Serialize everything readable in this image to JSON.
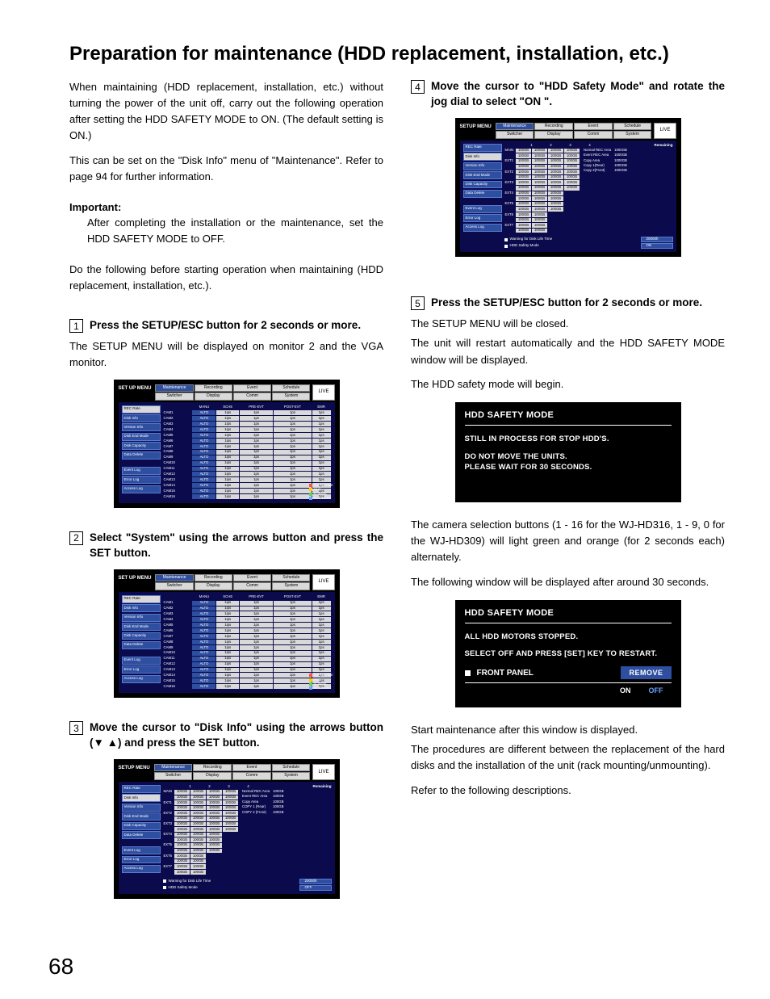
{
  "pageNumber": "68",
  "title": "Preparation for maintenance (HDD replacement, installation, etc.)",
  "intro": {
    "p1": "When maintaining (HDD replacement, installation, etc.) without turning the power of the unit off, carry out the following operation after setting the HDD SAFETY MODE to ON. (The default setting is ON.)",
    "p2": "This can be set on the \"Disk Info\" menu of \"Maintenance\". Refer to page 94 for further information.",
    "importantHead": "Important:",
    "importantBody": "After completing the installation or the maintenance, set the HDD SAFETY MODE to OFF.",
    "p3": "Do the following before starting operation when maintaining (HDD replacement, installation, etc.)."
  },
  "steps": {
    "s1": {
      "num": "1",
      "title": "Press the SETUP/ESC button for 2 seconds or more.",
      "body": "The SETUP MENU will be displayed on monitor 2 and the VGA monitor."
    },
    "s2": {
      "num": "2",
      "title": "Select \"System\" using the arrows button and press the SET button."
    },
    "s3": {
      "num": "3",
      "title": "Move the cursor to \"Disk Info\" using the arrows button (▼ ▲) and press the SET button."
    },
    "s4": {
      "num": "4",
      "title": "Move the cursor to \"HDD Safety Mode\" and rotate the jog dial to select \"ON \"."
    },
    "s5": {
      "num": "5",
      "title": "Press the SETUP/ESC button for 2 seconds or more.",
      "body1": "The SETUP MENU will be closed.",
      "body2": "The unit will restart automatically and the HDD SAFETY MODE window will be displayed.",
      "body3": "The HDD safety mode will begin."
    }
  },
  "menu": {
    "setupLabel": "SET UP MENU",
    "setupLabelAlt": "SETUP MENU",
    "live": "LIVE",
    "tabsTop": [
      "Maintenance",
      "Recording",
      "Event",
      "Schedule"
    ],
    "tabsBot": [
      "Switcher",
      "Display",
      "Comm",
      "System"
    ],
    "side": [
      "REC Rate",
      "Disk Info",
      "Version Info",
      "Disk End Mode",
      "Disk Capacity",
      "Data Delete"
    ],
    "sideBottom": [
      "Event Log",
      "Error Log",
      "Access Log"
    ],
    "tableHead": [
      "",
      "MANU",
      "SCHE",
      "PRE-EVT",
      "POST-EVT",
      "EMR"
    ],
    "tableRowVals": [
      "ALTO",
      "1ips",
      "1ps",
      "1ps",
      "1ps"
    ],
    "camCount": 16,
    "legend": [
      "SUPER FINE",
      "FINE",
      "NORMAL",
      "EXTENDED"
    ],
    "legendColors": [
      "#ff4d4d",
      "#ffcc00",
      "#66cc66",
      "#66aaff"
    ],
    "diskHeadNums": [
      "1",
      "2",
      "3",
      "4"
    ],
    "diskHeadRemain": "Remaining",
    "diskRows": [
      "MAIN",
      "",
      "EXT1",
      "",
      "EXT2",
      "",
      "EXT3",
      "",
      "EXT4",
      "",
      "EXT5",
      "",
      "EXT6",
      "",
      "EXT7",
      ""
    ],
    "diskVal": "100GB",
    "remain": [
      {
        "l": "Normal REC Area",
        "v": "100GB"
      },
      {
        "l": "Event REC Area",
        "v": "100GB"
      },
      {
        "l": "Copy Area",
        "v": "100GB"
      },
      {
        "l": "COPY 1 (Rear)",
        "v": "100GB"
      },
      {
        "l": "COPY 2 (Front)",
        "v": "100GB"
      }
    ],
    "remainAlt": [
      {
        "l": "Normal REC Area",
        "v": "1000GB"
      },
      {
        "l": "Event REC Area",
        "v": "1000GB"
      },
      {
        "l": "Copy Area",
        "v": "1000GB"
      },
      {
        "l": "Copy 1(Rear)",
        "v": "1000GB"
      },
      {
        "l": "Copy 2(Front)",
        "v": "1000GB"
      }
    ],
    "footWarn": "Warning for Disk Life Time",
    "footWarnVal": "20000h",
    "footSafety": "HDD Safety Mode",
    "footSafetyValOff": "OFF",
    "footSafetyValOn": "ON"
  },
  "hdd1": {
    "title": "HDD SAFETY MODE",
    "l1": "STILL IN PROCESS FOR STOP HDD'S.",
    "l2": "DO NOT MOVE THE UNITS.",
    "l3": "PLEASE WAIT FOR 30 SECONDS."
  },
  "mid": {
    "p1": "The camera selection buttons (1 - 16 for the WJ-HD316, 1 - 9, 0 for the WJ-HD309) will light green and orange (for 2 seconds each) alternately.",
    "p2": "The following window will be displayed after around 30 seconds."
  },
  "hdd2": {
    "title": "HDD SAFETY MODE",
    "l1": "ALL HDD MOTORS STOPPED.",
    "l2": "SELECT OFF AND PRESS [SET] KEY TO RESTART.",
    "front": "FRONT PANEL",
    "remove": "REMOVE",
    "on": "ON",
    "off": "OFF"
  },
  "outro": {
    "p1": "Start maintenance after this window is displayed.",
    "p2": "The procedures are different between the replacement of the hard disks and the installation of the unit (rack mounting/unmounting).",
    "p3": "Refer to the following descriptions."
  },
  "colors": {
    "menuBg": "#000000",
    "menuPanel": "#0a0a4d",
    "accentBlue": "#2e4ea0",
    "cellGrey": "#d9d9d9",
    "linkBlue": "#6aa0ff"
  }
}
